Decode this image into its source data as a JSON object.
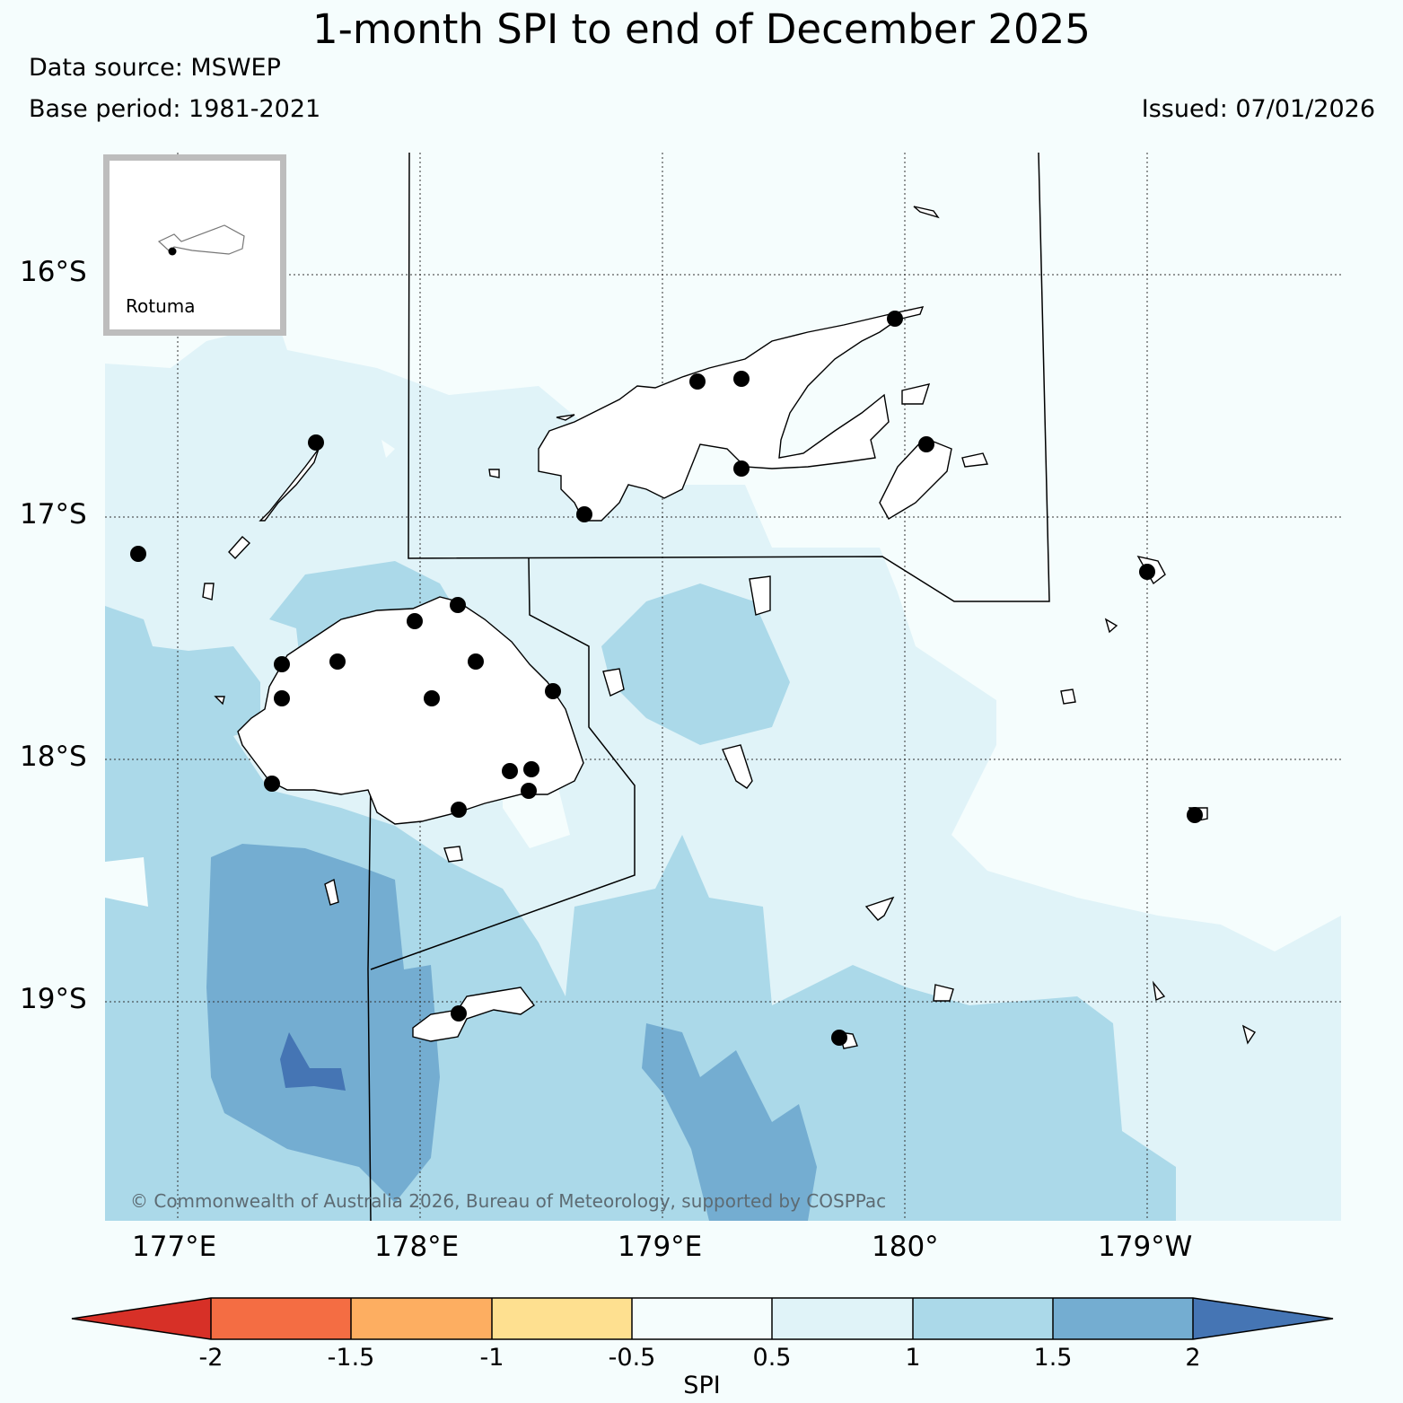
{
  "header": {
    "title": "1-month SPI to end of December 2025",
    "data_source": "Data source: MSWEP",
    "base_period": "Base period: 1981-2021",
    "issued": "Issued: 07/01/2026"
  },
  "map": {
    "lat_labels": [
      "16°S",
      "17°S",
      "18°S",
      "19°S"
    ],
    "lon_labels": [
      "177°E",
      "178°E",
      "179°E",
      "180°",
      "179°W"
    ],
    "inset_label": "Rotuma",
    "copyright": "© Commonwealth of Australia 2026, Bureau of Meteorology, supported by COSPPac",
    "colors": {
      "spi_05_1": "#e0f3f8",
      "spi_1_15": "#abd9e9",
      "spi_15_2": "#74add1",
      "spi_gt2": "#4575b4",
      "background": "#f5fdfd"
    }
  },
  "colorbar": {
    "label": "SPI",
    "ticks": [
      "-2",
      "-1.5",
      "-1",
      "-0.5",
      "0.5",
      "1",
      "1.5",
      "2"
    ],
    "colors": [
      "#d73027",
      "#f46d43",
      "#fdae61",
      "#fee090",
      "#f5fdfd",
      "#e0f3f8",
      "#abd9e9",
      "#74add1",
      "#4575b4"
    ]
  }
}
